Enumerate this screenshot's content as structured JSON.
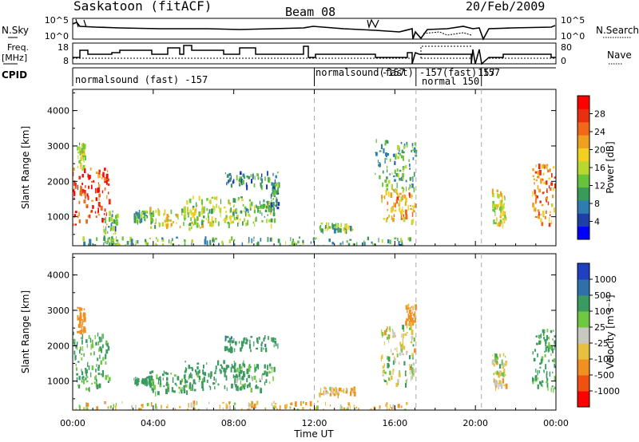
{
  "header": {
    "station": "Saskatoon (fitACF)",
    "beam": "Beam 08",
    "date": "20/Feb/2009"
  },
  "top_panels": {
    "nsky_label": "N.Sky",
    "nsky_ticks": [
      "10^5",
      "10^0"
    ],
    "nsearch_label": "N.Search",
    "nsearch_ticks": [
      "10^5",
      "10^0"
    ],
    "freq_label": "Freq.",
    "freq_unit": "[MHz]",
    "freq_ticks": [
      "18",
      "8"
    ],
    "nave_label": "Nave",
    "nave_ticks": [
      "80",
      "0"
    ],
    "cpid_label": "CPID",
    "cpid_segments": [
      {
        "label": "normalsound (fast) -157",
        "start": 0.0
      },
      {
        "label": "normalsound(fast)",
        "start": 12.0
      },
      {
        "label": "-157",
        "start": 15.3
      },
      {
        "label": "-157(fast) 157",
        "start": 16.6
      },
      {
        "label": "normal 150",
        "start": 17.1
      },
      {
        "label": "157",
        "start": 20.3
      }
    ]
  },
  "axes": {
    "ylabel": "Slant Range [km]",
    "xlabel": "Time UT",
    "yticks": [
      "4000",
      "3000",
      "2000",
      "1000"
    ],
    "xticks": [
      "00:00",
      "04:00",
      "08:00",
      "12:00",
      "16:00",
      "20:00",
      "00:00"
    ]
  },
  "power_colorbar": {
    "title": "Power [dB]",
    "labels": [
      "28",
      "24",
      "20",
      "16",
      "12",
      "8",
      "4"
    ],
    "colors": [
      "#0000ff",
      "#1e3fa8",
      "#2e7db0",
      "#3a9a5a",
      "#66c43a",
      "#b8d830",
      "#f0d020",
      "#f0a020",
      "#f06818",
      "#e83010",
      "#ff0000"
    ]
  },
  "velocity_colorbar": {
    "title": "Velocity [m s⁻¹]",
    "labels": [
      "1000",
      "500",
      "100",
      "25",
      "-25",
      "-100",
      "-500",
      "-1000"
    ],
    "colors": [
      "#2040c0",
      "#3070a8",
      "#3a9a60",
      "#70c840",
      "#c8c8c0",
      "#e8c040",
      "#f09020",
      "#f05010",
      "#ff0000"
    ]
  },
  "chart_data": [
    {
      "type": "heatmap",
      "title": "Power [dB]",
      "xlabel": "Time UT",
      "ylabel": "Slant Range [km]",
      "xlim": [
        0,
        24
      ],
      "ylim": [
        180,
        4600
      ],
      "clim": [
        0,
        30
      ],
      "grid": false,
      "legend": "right",
      "blobs": [
        {
          "t0": 0.0,
          "t1": 1.8,
          "r0": 800,
          "r1": 2400,
          "v": 26
        },
        {
          "t0": 0.2,
          "t1": 0.6,
          "r0": 2400,
          "r1": 3100,
          "v": 16
        },
        {
          "t0": 1.5,
          "t1": 2.2,
          "r0": 200,
          "r1": 1200,
          "v": 10
        },
        {
          "t0": 3.0,
          "t1": 4.0,
          "r0": 900,
          "r1": 1200,
          "v": 10
        },
        {
          "t0": 3.8,
          "t1": 6.5,
          "r0": 700,
          "r1": 1300,
          "v": 16
        },
        {
          "t0": 5.5,
          "t1": 8.5,
          "r0": 800,
          "r1": 1600,
          "v": 14
        },
        {
          "t0": 8.0,
          "t1": 10.0,
          "r0": 800,
          "r1": 1500,
          "v": 12
        },
        {
          "t0": 7.5,
          "t1": 10.2,
          "r0": 1900,
          "r1": 2300,
          "v": 8
        },
        {
          "t0": 9.8,
          "t1": 10.2,
          "r0": 1200,
          "r1": 2000,
          "v": 8
        },
        {
          "t0": 12.2,
          "t1": 14.0,
          "r0": 650,
          "r1": 850,
          "v": 12
        },
        {
          "t0": 15.3,
          "t1": 17.0,
          "r0": 900,
          "r1": 1800,
          "v": 20
        },
        {
          "t0": 15.0,
          "t1": 17.0,
          "r0": 1800,
          "r1": 3200,
          "v": 10
        },
        {
          "t0": 20.8,
          "t1": 21.5,
          "r0": 800,
          "r1": 1800,
          "v": 16
        },
        {
          "t0": 22.8,
          "t1": 24.0,
          "r0": 800,
          "r1": 2500,
          "v": 22
        },
        {
          "t0": 0.0,
          "t1": 17.0,
          "r0": 180,
          "r1": 450,
          "v": 10
        }
      ]
    },
    {
      "type": "heatmap",
      "title": "Velocity [m s⁻¹]",
      "xlabel": "Time UT",
      "ylabel": "Slant Range [km]",
      "xlim": [
        0,
        24
      ],
      "ylim": [
        180,
        4600
      ],
      "clim": [
        -1000,
        1000
      ],
      "grid": false,
      "legend": "right",
      "blobs": [
        {
          "t0": 0.0,
          "t1": 1.8,
          "r0": 800,
          "r1": 2400,
          "v": 150
        },
        {
          "t0": 0.2,
          "t1": 0.6,
          "r0": 2400,
          "r1": 3100,
          "v": -300
        },
        {
          "t0": 3.0,
          "t1": 4.0,
          "r0": 900,
          "r1": 1200,
          "v": 300
        },
        {
          "t0": 3.8,
          "t1": 6.5,
          "r0": 700,
          "r1": 1300,
          "v": 150
        },
        {
          "t0": 5.5,
          "t1": 8.5,
          "r0": 800,
          "r1": 1600,
          "v": 250
        },
        {
          "t0": 8.0,
          "t1": 10.0,
          "r0": 800,
          "r1": 1500,
          "v": 120
        },
        {
          "t0": 7.5,
          "t1": 10.2,
          "r0": 1900,
          "r1": 2300,
          "v": 400
        },
        {
          "t0": 12.2,
          "t1": 14.0,
          "r0": 650,
          "r1": 850,
          "v": -80
        },
        {
          "t0": 15.3,
          "t1": 17.0,
          "r0": 900,
          "r1": 2600,
          "v": 0
        },
        {
          "t0": 16.5,
          "t1": 17.0,
          "r0": 2600,
          "r1": 3200,
          "v": -200
        },
        {
          "t0": 20.8,
          "t1": 21.5,
          "r0": 800,
          "r1": 1800,
          "v": 0
        },
        {
          "t0": 22.8,
          "t1": 24.0,
          "r0": 800,
          "r1": 2500,
          "v": 150
        },
        {
          "t0": 0.0,
          "t1": 17.0,
          "r0": 180,
          "r1": 450,
          "v": -60
        }
      ]
    }
  ]
}
